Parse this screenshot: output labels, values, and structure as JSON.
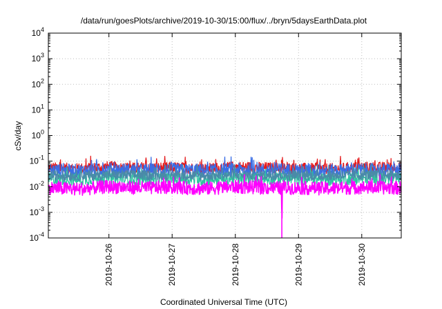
{
  "chart_data": {
    "type": "line",
    "title": "/data/run/goesPlots/archive/2019-10-30/15:00/flux/../bryn/5daysEarthData.plot",
    "xlabel": "Coordinated Universal Time (UTC)",
    "ylabel": "cSv/day",
    "yscale": "log",
    "ylim": [
      0.0001,
      10000
    ],
    "xlim": [
      "2019-10-25 01:00",
      "2019-10-30 15:00"
    ],
    "grid": true,
    "legend": "none",
    "y_ticks": [
      {
        "value": 10000,
        "mantissa": "10",
        "exp": "4"
      },
      {
        "value": 1000,
        "mantissa": "10",
        "exp": "3"
      },
      {
        "value": 100,
        "mantissa": "10",
        "exp": "2"
      },
      {
        "value": 10,
        "mantissa": "10",
        "exp": "1"
      },
      {
        "value": 1,
        "mantissa": "10",
        "exp": "0"
      },
      {
        "value": 0.1,
        "mantissa": "10",
        "exp": "-1"
      },
      {
        "value": 0.01,
        "mantissa": "10",
        "exp": "-2"
      },
      {
        "value": 0.001,
        "mantissa": "10",
        "exp": "-3"
      },
      {
        "value": 0.0001,
        "mantissa": "10",
        "exp": "-4"
      }
    ],
    "x_ticks": [
      "2019-10-26",
      "2019-10-27",
      "2019-10-28",
      "2019-10-29",
      "2019-10-30"
    ],
    "series": [
      {
        "color": "#e41a1c",
        "base": 0.055,
        "noise": 0.5,
        "x": [
          "2019-10-25 01:00",
          "2019-10-25 12:00",
          "2019-10-26 00:00",
          "2019-10-26 12:00",
          "2019-10-27 00:00",
          "2019-10-27 12:00",
          "2019-10-28 00:00",
          "2019-10-28 12:00",
          "2019-10-29 00:00",
          "2019-10-29 12:00",
          "2019-10-30 00:00",
          "2019-10-30 15:00"
        ],
        "y": [
          0.055,
          0.05,
          0.06,
          0.052,
          0.057,
          0.05,
          0.06,
          0.055,
          0.052,
          0.05,
          0.058,
          0.055
        ]
      },
      {
        "color": "#3a6ee6",
        "base": 0.045,
        "noise": 0.6,
        "x": [
          "2019-10-25 01:00",
          "2019-10-25 12:00",
          "2019-10-26 00:00",
          "2019-10-26 12:00",
          "2019-10-27 00:00",
          "2019-10-27 12:00",
          "2019-10-28 00:00",
          "2019-10-28 12:00",
          "2019-10-29 00:00",
          "2019-10-29 12:00",
          "2019-10-30 00:00",
          "2019-10-30 15:00"
        ],
        "y": [
          0.045,
          0.042,
          0.048,
          0.044,
          0.046,
          0.043,
          0.047,
          0.045,
          0.044,
          0.042,
          0.046,
          0.045
        ]
      },
      {
        "color": "#2fc4a0",
        "base": 0.02,
        "noise": 0.55,
        "x": [
          "2019-10-25 01:00",
          "2019-10-25 12:00",
          "2019-10-26 00:00",
          "2019-10-26 12:00",
          "2019-10-27 00:00",
          "2019-10-27 12:00",
          "2019-10-28 00:00",
          "2019-10-28 12:00",
          "2019-10-29 00:00",
          "2019-10-29 12:00",
          "2019-10-30 00:00",
          "2019-10-30 15:00"
        ],
        "y": [
          0.02,
          0.019,
          0.021,
          0.02,
          0.02,
          0.019,
          0.021,
          0.02,
          0.02,
          0.019,
          0.021,
          0.02
        ]
      },
      {
        "color": "#4a8aa8",
        "base": 0.028,
        "noise": 0.45,
        "x": [
          "2019-10-25 01:00",
          "2019-10-25 12:00",
          "2019-10-26 00:00",
          "2019-10-26 12:00",
          "2019-10-27 00:00",
          "2019-10-27 12:00",
          "2019-10-28 00:00",
          "2019-10-28 12:00",
          "2019-10-29 00:00",
          "2019-10-29 12:00",
          "2019-10-30 00:00",
          "2019-10-30 15:00"
        ],
        "y": [
          0.028,
          0.027,
          0.029,
          0.028,
          0.028,
          0.027,
          0.029,
          0.028,
          0.028,
          0.027,
          0.029,
          0.028
        ]
      },
      {
        "color": "#ff00ff",
        "base": 0.009,
        "noise": 0.6,
        "x": [
          "2019-10-25 01:00",
          "2019-10-25 12:00",
          "2019-10-26 00:00",
          "2019-10-26 12:00",
          "2019-10-27 00:00",
          "2019-10-27 12:00",
          "2019-10-28 00:00",
          "2019-10-28 12:00",
          "2019-10-28 17:30",
          "2019-10-28 17:40",
          "2019-10-28 17:50",
          "2019-10-29 00:00",
          "2019-10-29 12:00",
          "2019-10-30 00:00",
          "2019-10-30 15:00"
        ],
        "y": [
          0.009,
          0.008,
          0.01,
          0.009,
          0.0095,
          0.0085,
          0.01,
          0.009,
          0.009,
          0.0001,
          0.009,
          0.009,
          0.0085,
          0.0095,
          0.009
        ]
      }
    ]
  }
}
